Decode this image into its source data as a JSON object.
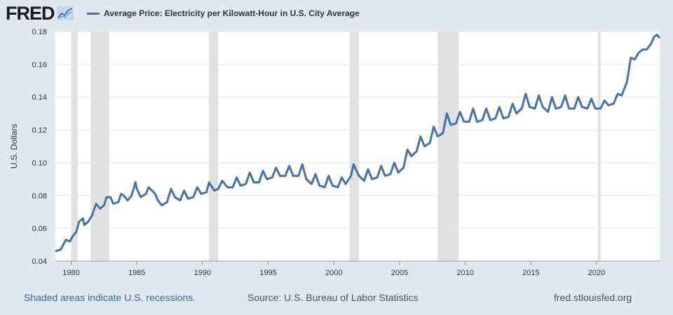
{
  "header": {
    "logo_text": "FRED",
    "logo_icon": "trend-line-icon",
    "legend_label": "Average Price: Electricity per Kilowatt-Hour in U.S. City Average"
  },
  "footer": {
    "recessions_note": "Shaded areas indicate U.S. recessions.",
    "source": "Source: U.S. Bureau of Labor Statistics",
    "site": "fred.stlouisfed.org"
  },
  "colors": {
    "background": "#e1e9f0",
    "plot": "#ffffff",
    "line": "#4572a7",
    "recession": "#e1e1e1",
    "grid": "#e6e6e6"
  },
  "chart_data": {
    "type": "line",
    "title": "",
    "xlabel": "",
    "ylabel": "U.S. Dollars",
    "xlim": [
      1978.8,
      2024.8
    ],
    "ylim": [
      0.04,
      0.18
    ],
    "x_ticks": [
      1980,
      1985,
      1990,
      1995,
      2000,
      2005,
      2010,
      2015,
      2020
    ],
    "y_ticks": [
      0.04,
      0.06,
      0.08,
      0.1,
      0.12,
      0.14,
      0.16,
      0.18
    ],
    "y_tick_labels": [
      "0.04",
      "0.06",
      "0.08",
      "0.10",
      "0.12",
      "0.14",
      "0.16",
      "0.18"
    ],
    "grid": true,
    "legend_position": "top-left",
    "recessions": [
      [
        1980.0,
        1980.5
      ],
      [
        1981.5,
        1982.9
      ],
      [
        1990.5,
        1991.2
      ],
      [
        2001.2,
        2001.9
      ],
      [
        2007.9,
        2009.5
      ],
      [
        2020.1,
        2020.3
      ]
    ],
    "series": [
      {
        "name": "Average Price: Electricity per Kilowatt-Hour in U.S. City Average",
        "points": [
          [
            1978.8,
            0.046
          ],
          [
            1979.2,
            0.047
          ],
          [
            1979.6,
            0.053
          ],
          [
            1979.9,
            0.052
          ],
          [
            1980.1,
            0.055
          ],
          [
            1980.4,
            0.058
          ],
          [
            1980.6,
            0.064
          ],
          [
            1980.9,
            0.066
          ],
          [
            1981.0,
            0.062
          ],
          [
            1981.3,
            0.064
          ],
          [
            1981.6,
            0.068
          ],
          [
            1981.9,
            0.075
          ],
          [
            1982.2,
            0.072
          ],
          [
            1982.5,
            0.074
          ],
          [
            1982.7,
            0.079
          ],
          [
            1983.0,
            0.079
          ],
          [
            1983.2,
            0.075
          ],
          [
            1983.6,
            0.076
          ],
          [
            1983.8,
            0.081
          ],
          [
            1984.0,
            0.08
          ],
          [
            1984.3,
            0.077
          ],
          [
            1984.6,
            0.08
          ],
          [
            1984.9,
            0.088
          ],
          [
            1985.0,
            0.084
          ],
          [
            1985.3,
            0.079
          ],
          [
            1985.7,
            0.081
          ],
          [
            1985.9,
            0.085
          ],
          [
            1986.4,
            0.081
          ],
          [
            1986.6,
            0.077
          ],
          [
            1986.9,
            0.074
          ],
          [
            1987.3,
            0.076
          ],
          [
            1987.6,
            0.084
          ],
          [
            1987.9,
            0.079
          ],
          [
            1988.3,
            0.077
          ],
          [
            1988.6,
            0.083
          ],
          [
            1988.9,
            0.078
          ],
          [
            1989.3,
            0.079
          ],
          [
            1989.6,
            0.085
          ],
          [
            1989.9,
            0.081
          ],
          [
            1990.3,
            0.082
          ],
          [
            1990.5,
            0.088
          ],
          [
            1990.9,
            0.083
          ],
          [
            1991.2,
            0.084
          ],
          [
            1991.5,
            0.089
          ],
          [
            1991.9,
            0.085
          ],
          [
            1992.3,
            0.085
          ],
          [
            1992.6,
            0.091
          ],
          [
            1992.9,
            0.086
          ],
          [
            1993.3,
            0.087
          ],
          [
            1993.6,
            0.094
          ],
          [
            1993.9,
            0.088
          ],
          [
            1994.3,
            0.088
          ],
          [
            1994.6,
            0.095
          ],
          [
            1994.9,
            0.09
          ],
          [
            1995.3,
            0.091
          ],
          [
            1995.6,
            0.097
          ],
          [
            1995.9,
            0.092
          ],
          [
            1996.3,
            0.092
          ],
          [
            1996.6,
            0.098
          ],
          [
            1996.9,
            0.092
          ],
          [
            1997.3,
            0.092
          ],
          [
            1997.6,
            0.099
          ],
          [
            1997.9,
            0.09
          ],
          [
            1998.3,
            0.087
          ],
          [
            1998.6,
            0.093
          ],
          [
            1998.9,
            0.086
          ],
          [
            1999.3,
            0.085
          ],
          [
            1999.6,
            0.092
          ],
          [
            1999.9,
            0.086
          ],
          [
            2000.3,
            0.085
          ],
          [
            2000.6,
            0.091
          ],
          [
            2000.9,
            0.087
          ],
          [
            2001.3,
            0.092
          ],
          [
            2001.5,
            0.099
          ],
          [
            2001.9,
            0.092
          ],
          [
            2002.3,
            0.089
          ],
          [
            2002.6,
            0.096
          ],
          [
            2002.9,
            0.09
          ],
          [
            2003.3,
            0.091
          ],
          [
            2003.6,
            0.098
          ],
          [
            2003.9,
            0.092
          ],
          [
            2004.3,
            0.093
          ],
          [
            2004.6,
            0.1
          ],
          [
            2004.9,
            0.094
          ],
          [
            2005.3,
            0.097
          ],
          [
            2005.6,
            0.108
          ],
          [
            2005.9,
            0.104
          ],
          [
            2006.3,
            0.107
          ],
          [
            2006.6,
            0.116
          ],
          [
            2006.9,
            0.11
          ],
          [
            2007.3,
            0.112
          ],
          [
            2007.6,
            0.122
          ],
          [
            2007.9,
            0.116
          ],
          [
            2008.3,
            0.118
          ],
          [
            2008.6,
            0.13
          ],
          [
            2008.9,
            0.123
          ],
          [
            2009.3,
            0.124
          ],
          [
            2009.6,
            0.131
          ],
          [
            2009.9,
            0.125
          ],
          [
            2010.3,
            0.125
          ],
          [
            2010.6,
            0.133
          ],
          [
            2010.9,
            0.125
          ],
          [
            2011.3,
            0.126
          ],
          [
            2011.6,
            0.133
          ],
          [
            2011.9,
            0.126
          ],
          [
            2012.3,
            0.127
          ],
          [
            2012.6,
            0.134
          ],
          [
            2012.9,
            0.127
          ],
          [
            2013.3,
            0.128
          ],
          [
            2013.6,
            0.136
          ],
          [
            2013.9,
            0.13
          ],
          [
            2014.3,
            0.133
          ],
          [
            2014.6,
            0.142
          ],
          [
            2014.9,
            0.134
          ],
          [
            2015.3,
            0.133
          ],
          [
            2015.6,
            0.141
          ],
          [
            2015.9,
            0.134
          ],
          [
            2016.3,
            0.131
          ],
          [
            2016.6,
            0.14
          ],
          [
            2016.9,
            0.133
          ],
          [
            2017.3,
            0.134
          ],
          [
            2017.6,
            0.141
          ],
          [
            2017.9,
            0.133
          ],
          [
            2018.3,
            0.133
          ],
          [
            2018.6,
            0.14
          ],
          [
            2018.9,
            0.134
          ],
          [
            2019.3,
            0.133
          ],
          [
            2019.6,
            0.139
          ],
          [
            2019.9,
            0.133
          ],
          [
            2020.3,
            0.133
          ],
          [
            2020.6,
            0.138
          ],
          [
            2020.9,
            0.135
          ],
          [
            2021.3,
            0.136
          ],
          [
            2021.6,
            0.142
          ],
          [
            2021.9,
            0.141
          ],
          [
            2022.3,
            0.149
          ],
          [
            2022.6,
            0.164
          ],
          [
            2022.9,
            0.163
          ],
          [
            2023.2,
            0.167
          ],
          [
            2023.5,
            0.169
          ],
          [
            2023.8,
            0.169
          ],
          [
            2024.1,
            0.172
          ],
          [
            2024.4,
            0.177
          ],
          [
            2024.6,
            0.178
          ],
          [
            2024.8,
            0.176
          ]
        ]
      }
    ]
  }
}
